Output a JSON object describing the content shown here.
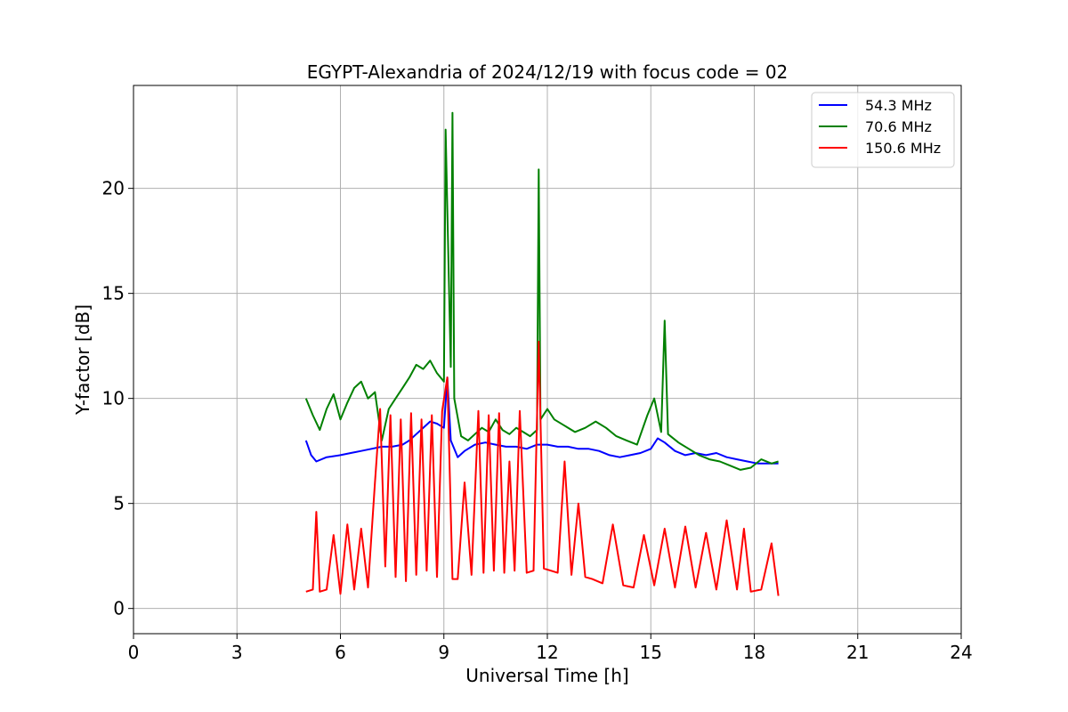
{
  "chart_data": {
    "type": "line",
    "title": "EGYPT-Alexandria of 2024/12/19 with focus code = 02",
    "xlabel": "Universal Time [h]",
    "ylabel": "Y-factor [dB]",
    "xlim": [
      0,
      24
    ],
    "ylim": [
      -1.2,
      24.9
    ],
    "xticks": [
      0,
      3,
      6,
      9,
      12,
      15,
      18,
      21,
      24
    ],
    "yticks": [
      0,
      5,
      10,
      15,
      20
    ],
    "grid": true,
    "legend_position": "top-right",
    "series": [
      {
        "name": " 54.3 MHz",
        "color": "#0000ff",
        "x": [
          5.0,
          5.15,
          5.3,
          5.6,
          6.0,
          6.3,
          6.6,
          6.9,
          7.2,
          7.5,
          7.8,
          8.0,
          8.2,
          8.4,
          8.6,
          8.8,
          9.0,
          9.1,
          9.2,
          9.4,
          9.6,
          9.9,
          10.2,
          10.5,
          10.8,
          11.1,
          11.4,
          11.7,
          12.0,
          12.3,
          12.6,
          12.9,
          13.2,
          13.5,
          13.8,
          14.1,
          14.4,
          14.7,
          15.0,
          15.2,
          15.4,
          15.7,
          16.0,
          16.3,
          16.6,
          16.9,
          17.2,
          17.5,
          17.8,
          18.1,
          18.4,
          18.7
        ],
        "y": [
          8.0,
          7.3,
          7.0,
          7.2,
          7.3,
          7.4,
          7.5,
          7.6,
          7.7,
          7.7,
          7.8,
          8.0,
          8.3,
          8.6,
          8.9,
          8.8,
          8.6,
          11.0,
          8.0,
          7.2,
          7.5,
          7.8,
          7.9,
          7.8,
          7.7,
          7.7,
          7.6,
          7.8,
          7.8,
          7.7,
          7.7,
          7.6,
          7.6,
          7.5,
          7.3,
          7.2,
          7.3,
          7.4,
          7.6,
          8.1,
          7.9,
          7.5,
          7.3,
          7.4,
          7.3,
          7.4,
          7.2,
          7.1,
          7.0,
          6.9,
          6.9,
          6.9
        ]
      },
      {
        "name": " 70.6 MHz",
        "color": "#008000",
        "x": [
          5.0,
          5.2,
          5.4,
          5.6,
          5.8,
          6.0,
          6.2,
          6.4,
          6.6,
          6.8,
          7.0,
          7.2,
          7.4,
          7.6,
          7.8,
          8.0,
          8.2,
          8.4,
          8.6,
          8.8,
          9.0,
          9.05,
          9.1,
          9.2,
          9.25,
          9.3,
          9.5,
          9.7,
          9.9,
          10.1,
          10.3,
          10.5,
          10.7,
          10.9,
          11.1,
          11.3,
          11.5,
          11.7,
          11.75,
          11.8,
          12.0,
          12.2,
          12.5,
          12.8,
          13.1,
          13.4,
          13.7,
          14.0,
          14.3,
          14.6,
          14.9,
          15.1,
          15.3,
          15.4,
          15.5,
          15.8,
          16.1,
          16.4,
          16.7,
          17.0,
          17.3,
          17.6,
          17.9,
          18.2,
          18.5,
          18.7
        ],
        "y": [
          10.0,
          9.2,
          8.5,
          9.5,
          10.2,
          9.0,
          9.8,
          10.5,
          10.8,
          10.0,
          10.3,
          8.0,
          9.5,
          10.0,
          10.5,
          11.0,
          11.6,
          11.4,
          11.8,
          11.2,
          10.8,
          22.8,
          19.0,
          11.5,
          23.6,
          10.0,
          8.2,
          8.0,
          8.3,
          8.6,
          8.4,
          9.0,
          8.5,
          8.3,
          8.6,
          8.4,
          8.2,
          8.5,
          20.9,
          9.0,
          9.5,
          9.0,
          8.7,
          8.4,
          8.6,
          8.9,
          8.6,
          8.2,
          8.0,
          7.8,
          9.2,
          10.0,
          8.4,
          13.7,
          8.3,
          7.9,
          7.6,
          7.3,
          7.1,
          7.0,
          6.8,
          6.6,
          6.7,
          7.1,
          6.9,
          7.0
        ]
      },
      {
        "name": "150.6 MHz",
        "color": "#ff0000",
        "x": [
          5.0,
          5.2,
          5.3,
          5.4,
          5.6,
          5.8,
          6.0,
          6.2,
          6.4,
          6.6,
          6.8,
          7.0,
          7.15,
          7.3,
          7.45,
          7.6,
          7.75,
          7.9,
          8.05,
          8.2,
          8.35,
          8.5,
          8.65,
          8.8,
          8.95,
          9.1,
          9.25,
          9.4,
          9.6,
          9.8,
          10.0,
          10.15,
          10.3,
          10.45,
          10.6,
          10.75,
          10.9,
          11.05,
          11.2,
          11.4,
          11.6,
          11.75,
          11.9,
          12.1,
          12.3,
          12.5,
          12.7,
          12.9,
          13.1,
          13.3,
          13.6,
          13.9,
          14.2,
          14.5,
          14.8,
          15.1,
          15.4,
          15.7,
          16.0,
          16.3,
          16.6,
          16.9,
          17.2,
          17.5,
          17.7,
          17.9,
          18.2,
          18.5,
          18.7
        ],
        "y": [
          0.8,
          0.9,
          4.6,
          0.8,
          0.9,
          3.5,
          0.7,
          4.0,
          0.9,
          3.8,
          1.0,
          6.0,
          9.5,
          2.0,
          9.2,
          1.5,
          9.0,
          1.3,
          9.3,
          1.6,
          9.0,
          1.8,
          9.2,
          1.5,
          9.4,
          11.0,
          1.4,
          1.4,
          6.0,
          1.6,
          9.4,
          1.7,
          9.2,
          1.8,
          9.3,
          1.7,
          7.0,
          1.8,
          9.4,
          1.7,
          1.8,
          12.7,
          1.9,
          1.8,
          1.7,
          7.0,
          1.6,
          5.0,
          1.5,
          1.4,
          1.2,
          4.0,
          1.1,
          1.0,
          3.5,
          1.1,
          3.8,
          1.0,
          3.9,
          1.0,
          3.6,
          0.9,
          4.2,
          0.9,
          3.8,
          0.8,
          0.9,
          3.1,
          0.6
        ]
      }
    ]
  }
}
